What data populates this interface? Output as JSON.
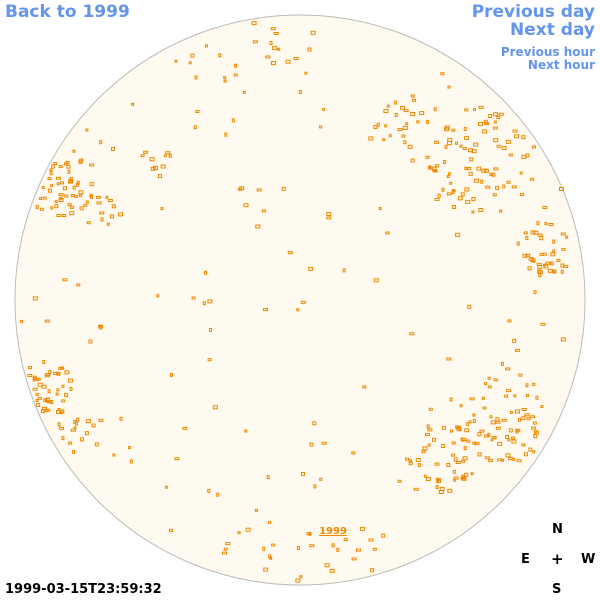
{
  "nav": {
    "back": "Back to 1999",
    "prev_day": "Previous day",
    "next_day": "Next day",
    "prev_hour": "Previous hour",
    "next_hour": "Next hour"
  },
  "sky": {
    "label": "1999",
    "disk_color": "#fffaf0",
    "outline_color": "#bbbbbb",
    "marker_color": "#ee8800"
  },
  "compass": {
    "n": "N",
    "e": "E",
    "center": "+",
    "w": "W",
    "s": "S"
  },
  "timestamp": "1999-03-15T23:59:32"
}
